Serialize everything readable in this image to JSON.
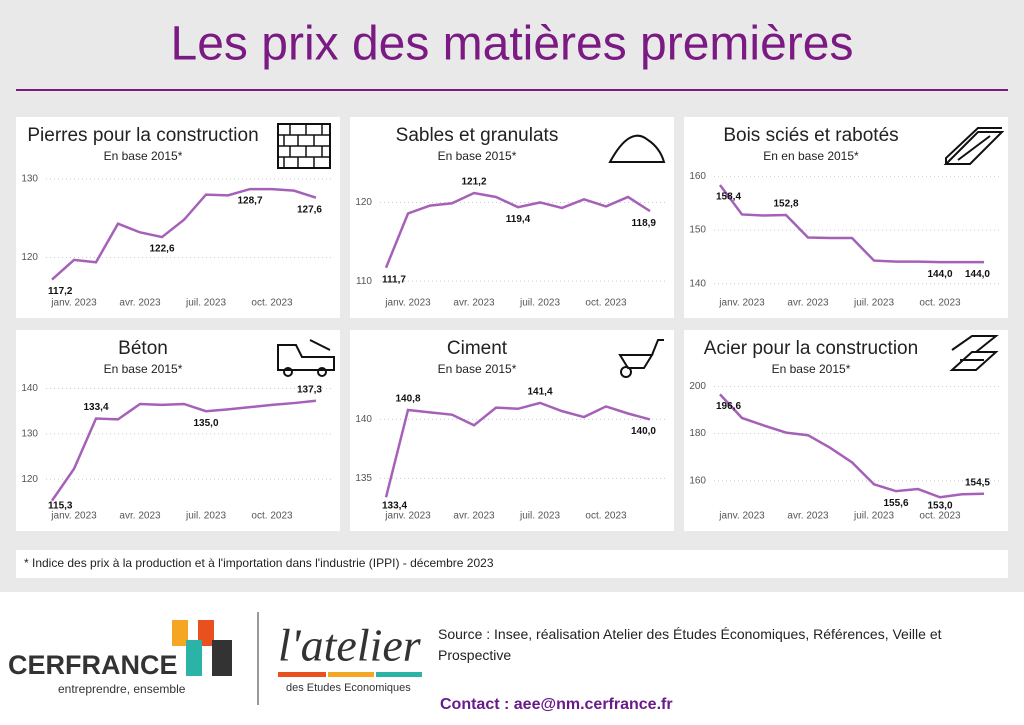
{
  "header": {
    "title": "Les prix des matières premières"
  },
  "chart_data": [
    {
      "type": "line",
      "title": "Pierres pour la construction",
      "subtitle": "En base 2015*",
      "categories": [
        null,
        "janv. 2023",
        null,
        null,
        "avr. 2023",
        null,
        null,
        "juil. 2023",
        null,
        null,
        "oct. 2023",
        null,
        null
      ],
      "values": [
        117.2,
        119.7,
        119.4,
        124.3,
        123.2,
        122.6,
        124.8,
        128.0,
        127.9,
        128.7,
        128.7,
        128.5,
        127.6
      ],
      "value_labels": [
        "117,2",
        null,
        null,
        null,
        null,
        "122,6",
        null,
        null,
        null,
        "128,7",
        null,
        null,
        "127,6"
      ],
      "color": "#a561b8",
      "ylim": [
        116,
        131
      ],
      "yticks": [
        120,
        130
      ],
      "grid": true
    },
    {
      "type": "line",
      "title": "Sables et granulats",
      "subtitle": "En base 2015*",
      "categories": [
        null,
        "janv. 2023",
        null,
        null,
        "avr. 2023",
        null,
        null,
        "juil. 2023",
        null,
        null,
        "oct. 2023",
        null,
        null
      ],
      "values": [
        111.7,
        118.6,
        119.6,
        119.9,
        121.2,
        120.7,
        119.4,
        120.0,
        119.3,
        120.4,
        119.5,
        120.7,
        118.9
      ],
      "value_labels": [
        "111,7",
        null,
        null,
        null,
        "121,2",
        null,
        "119,4",
        null,
        null,
        null,
        null,
        null,
        "118,9"
      ],
      "color": "#a561b8",
      "ylim": [
        109,
        124
      ],
      "yticks": [
        110,
        120
      ],
      "grid": true
    },
    {
      "type": "line",
      "title": "Bois sciés et rabotés",
      "subtitle": "En en base 2015*",
      "categories": [
        null,
        "janv. 2023",
        null,
        null,
        "avr. 2023",
        null,
        null,
        "juil. 2023",
        null,
        null,
        "oct. 2023",
        null,
        null
      ],
      "values": [
        158.4,
        152.9,
        152.7,
        152.8,
        148.6,
        148.5,
        148.5,
        144.3,
        144.1,
        144.1,
        144.0,
        144.0,
        144.0
      ],
      "value_labels": [
        "158,4",
        null,
        null,
        "152,8",
        null,
        null,
        null,
        null,
        null,
        null,
        "144,0",
        null,
        "144,0"
      ],
      "color": "#a561b8",
      "ylim": [
        139,
        161
      ],
      "yticks": [
        140,
        150,
        160
      ],
      "grid": true
    },
    {
      "type": "line",
      "title": "Béton",
      "subtitle": "En base 2015*",
      "categories": [
        null,
        "janv. 2023",
        null,
        null,
        "avr. 2023",
        null,
        null,
        "juil. 2023",
        null,
        null,
        "oct. 2023",
        null,
        null
      ],
      "values": [
        115.3,
        122.3,
        133.4,
        133.2,
        136.6,
        136.4,
        136.6,
        135.0,
        135.4,
        135.9,
        136.4,
        136.8,
        137.3
      ],
      "value_labels": [
        "115,3",
        null,
        "133,4",
        null,
        null,
        null,
        null,
        "135,0",
        null,
        null,
        null,
        null,
        "137,3"
      ],
      "color": "#a561b8",
      "ylim": [
        115,
        141
      ],
      "yticks": [
        120,
        130,
        140
      ],
      "grid": true
    },
    {
      "type": "line",
      "title": "Ciment",
      "subtitle": "En base 2015*",
      "categories": [
        null,
        "janv. 2023",
        null,
        null,
        "avr. 2023",
        null,
        null,
        "juil. 2023",
        null,
        null,
        "oct. 2023",
        null,
        null
      ],
      "values": [
        133.4,
        140.8,
        140.6,
        140.4,
        139.5,
        141.0,
        140.9,
        141.4,
        140.7,
        140.2,
        141.1,
        140.5,
        140.0
      ],
      "value_labels": [
        "133,4",
        "140,8",
        null,
        null,
        null,
        null,
        null,
        "141,4",
        null,
        null,
        null,
        null,
        "140,0"
      ],
      "color": "#a561b8",
      "ylim": [
        133,
        143
      ],
      "yticks": [
        135,
        140
      ],
      "grid": true
    },
    {
      "type": "line",
      "title": "Acier pour la construction",
      "subtitle": "En base 2015*",
      "categories": [
        null,
        "janv. 2023",
        null,
        null,
        "avr. 2023",
        null,
        null,
        "juil. 2023",
        null,
        null,
        "oct. 2023",
        null,
        null
      ],
      "values": [
        196.6,
        186.6,
        183.4,
        180.4,
        179.3,
        174.0,
        167.8,
        158.5,
        155.6,
        156.5,
        153.0,
        154.3,
        154.5
      ],
      "value_labels": [
        "196,6",
        null,
        null,
        null,
        null,
        null,
        null,
        null,
        "155,6",
        null,
        "153,0",
        null,
        "154,5"
      ],
      "color": "#a561b8",
      "ylim": [
        151,
        201
      ],
      "yticks": [
        160,
        180,
        200
      ],
      "grid": true
    }
  ],
  "note": "* Indice des prix à la production et à l'importation dans l'industrie (IPPI) - décembre 2023",
  "footer": {
    "brand": "CERFRANCE",
    "tagline": "entreprendre, ensemble",
    "atelier": "l'atelier",
    "atelier_sub": "des Etudes Economiques",
    "source": "Source : Insee, réalisation Atelier des Études Économiques, Références, Veille et Prospective",
    "contact": "Contact : aee@nm.cerfrance.fr"
  }
}
